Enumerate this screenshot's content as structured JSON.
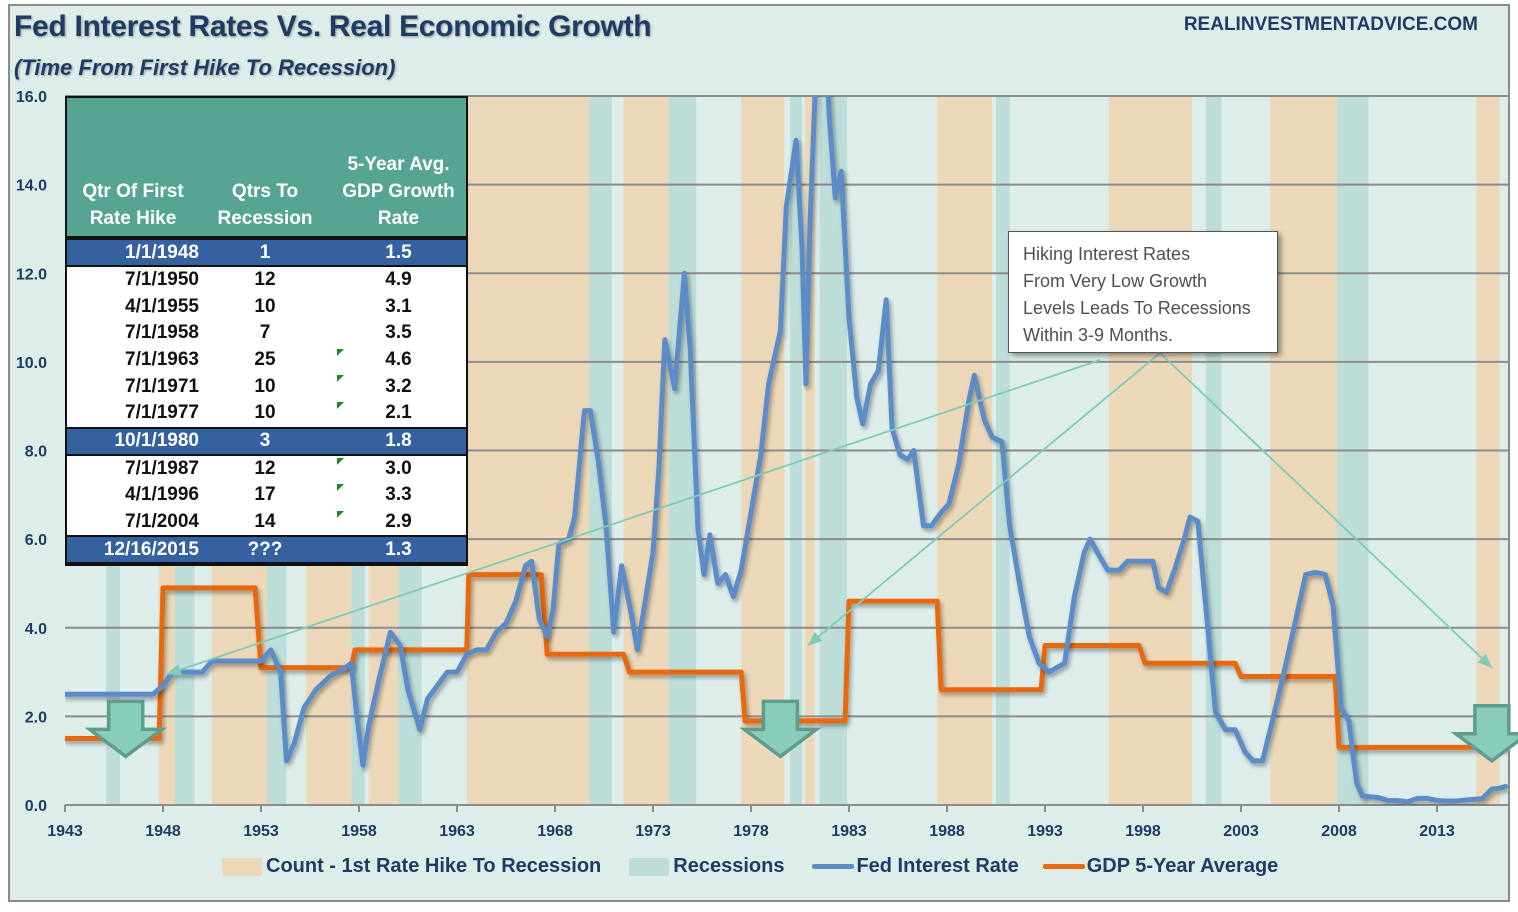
{
  "header": {
    "title": "Fed Interest Rates Vs. Real Economic Growth",
    "subtitle": "(Time From First Hike To Recession)",
    "brand": "REALINVESTMENTADVICE.COM"
  },
  "colors": {
    "background": "#ddedea",
    "count_band": "#ecd8b8",
    "recession_band": "#bdddd8",
    "fed_rate": "#5b8cc8",
    "gdp": "#e8690f",
    "arrow_fill": "#88cdb9",
    "arrow_stroke": "#5f9c8c",
    "pointer": "#7fcbb8",
    "table_header": "#56a593",
    "table_highlight": "#34619f"
  },
  "table": {
    "headers": [
      "Qtr Of First\nRate Hike",
      "Qtrs To\nRecession",
      "5-Year Avg.\nGDP Growth\nRate"
    ],
    "rows": [
      {
        "date": "1/1/1948",
        "qtrs": "1",
        "gdp": "1.5",
        "highlight": true,
        "flag": false
      },
      {
        "date": "7/1/1950",
        "qtrs": "12",
        "gdp": "4.9",
        "highlight": false,
        "flag": false
      },
      {
        "date": "4/1/1955",
        "qtrs": "10",
        "gdp": "3.1",
        "highlight": false,
        "flag": false
      },
      {
        "date": "7/1/1958",
        "qtrs": "7",
        "gdp": "3.5",
        "highlight": false,
        "flag": false
      },
      {
        "date": "7/1/1963",
        "qtrs": "25",
        "gdp": "4.6",
        "highlight": false,
        "flag": true
      },
      {
        "date": "7/1/1971",
        "qtrs": "10",
        "gdp": "3.2",
        "highlight": false,
        "flag": true
      },
      {
        "date": "7/1/1977",
        "qtrs": "10",
        "gdp": "2.1",
        "highlight": false,
        "flag": true
      },
      {
        "date": "10/1/1980",
        "qtrs": "3",
        "gdp": "1.8",
        "highlight": true,
        "flag": false
      },
      {
        "date": "7/1/1987",
        "qtrs": "12",
        "gdp": "3.0",
        "highlight": false,
        "flag": true
      },
      {
        "date": "4/1/1996",
        "qtrs": "17",
        "gdp": "3.3",
        "highlight": false,
        "flag": true
      },
      {
        "date": "7/1/2004",
        "qtrs": "14",
        "gdp": "2.9",
        "highlight": false,
        "flag": true
      },
      {
        "date": "12/16/2015",
        "qtrs": "???",
        "gdp": "1.3",
        "highlight": true,
        "flag": false
      }
    ]
  },
  "callout": {
    "lines": [
      "Hiking Interest Rates",
      "From Very Low Growth",
      "Levels Leads To Recessions",
      "Within 3-9 Months."
    ]
  },
  "chart_data": {
    "type": "line",
    "title": "Fed Interest Rates Vs. Real Economic Growth",
    "subtitle": "(Time From First Hike To Recession)",
    "xlabel": "",
    "ylabel": "",
    "xlim": [
      1943,
      2016.6
    ],
    "ylim": [
      0,
      16
    ],
    "x_ticks": [
      1943,
      1948,
      1953,
      1958,
      1963,
      1968,
      1973,
      1978,
      1983,
      1988,
      1993,
      1998,
      2003,
      2008,
      2013
    ],
    "y_ticks": [
      "0.0",
      "2.0",
      "4.0",
      "6.0",
      "8.0",
      "10.0",
      "12.0",
      "14.0",
      "16.0"
    ],
    "grid": "horizontal",
    "legend_position": "bottom",
    "legend": [
      {
        "label": "Count - 1st Rate Hike To Recession",
        "kind": "band"
      },
      {
        "label": "Recessions",
        "kind": "band"
      },
      {
        "label": "Fed Interest Rate",
        "kind": "line"
      },
      {
        "label": "GDP 5-Year Average",
        "kind": "line"
      }
    ],
    "count_bands": [
      [
        1947.8,
        1948.6
      ],
      [
        1950.5,
        1953.3
      ],
      [
        1955.3,
        1957.6
      ],
      [
        1958.5,
        1960.0
      ],
      [
        1963.5,
        1969.75
      ],
      [
        1971.5,
        1973.8
      ],
      [
        1977.5,
        1979.7
      ],
      [
        1980.75,
        1981.25
      ],
      [
        1987.5,
        1990.3
      ],
      [
        1996.25,
        2000.5
      ],
      [
        2004.5,
        2007.9
      ],
      [
        2015.0,
        2016.2
      ]
    ],
    "recession_bands": [
      [
        1945.1,
        1945.8
      ],
      [
        1948.6,
        1949.6
      ],
      [
        1953.3,
        1954.3
      ],
      [
        1957.6,
        1958.3
      ],
      [
        1960.0,
        1961.2
      ],
      [
        1969.75,
        1970.9
      ],
      [
        1973.8,
        1975.2
      ],
      [
        1980.0,
        1980.6
      ],
      [
        1981.5,
        1982.9
      ],
      [
        1990.5,
        1991.2
      ],
      [
        2001.2,
        2002.0
      ],
      [
        2007.9,
        2009.5
      ]
    ],
    "series": [
      {
        "name": "Fed Interest Rate",
        "points": [
          [
            1943,
            2.5
          ],
          [
            1947.5,
            2.5
          ],
          [
            1948,
            2.7
          ],
          [
            1948.5,
            3.0
          ],
          [
            1950,
            3.0
          ],
          [
            1950.5,
            3.25
          ],
          [
            1953,
            3.25
          ],
          [
            1953.5,
            3.5
          ],
          [
            1954,
            3.0
          ],
          [
            1954.3,
            1.0
          ],
          [
            1954.7,
            1.4
          ],
          [
            1955.2,
            2.2
          ],
          [
            1955.8,
            2.6
          ],
          [
            1956.5,
            2.9
          ],
          [
            1957.3,
            3.1
          ],
          [
            1957.6,
            3.2
          ],
          [
            1957.9,
            2.0
          ],
          [
            1958.2,
            0.9
          ],
          [
            1958.5,
            1.8
          ],
          [
            1959,
            2.8
          ],
          [
            1959.6,
            3.9
          ],
          [
            1960.1,
            3.6
          ],
          [
            1960.5,
            2.6
          ],
          [
            1961.1,
            1.7
          ],
          [
            1961.5,
            2.4
          ],
          [
            1962,
            2.7
          ],
          [
            1962.5,
            3.0
          ],
          [
            1963,
            3.0
          ],
          [
            1963.5,
            3.4
          ],
          [
            1964,
            3.5
          ],
          [
            1964.5,
            3.5
          ],
          [
            1965,
            3.9
          ],
          [
            1965.5,
            4.1
          ],
          [
            1966,
            4.6
          ],
          [
            1966.5,
            5.4
          ],
          [
            1966.8,
            5.5
          ],
          [
            1967.2,
            4.2
          ],
          [
            1967.6,
            3.8
          ],
          [
            1967.9,
            4.4
          ],
          [
            1968.2,
            5.9
          ],
          [
            1968.7,
            6.0
          ],
          [
            1969,
            6.5
          ],
          [
            1969.5,
            8.9
          ],
          [
            1969.8,
            8.9
          ],
          [
            1970.2,
            7.8
          ],
          [
            1970.6,
            6.3
          ],
          [
            1971,
            3.9
          ],
          [
            1971.4,
            5.4
          ],
          [
            1971.9,
            4.3
          ],
          [
            1972.2,
            3.5
          ],
          [
            1972.6,
            4.6
          ],
          [
            1973,
            5.7
          ],
          [
            1973.3,
            7.6
          ],
          [
            1973.6,
            10.5
          ],
          [
            1974.1,
            9.4
          ],
          [
            1974.6,
            12.0
          ],
          [
            1974.9,
            10.3
          ],
          [
            1975.3,
            6.2
          ],
          [
            1975.6,
            5.2
          ],
          [
            1975.9,
            6.1
          ],
          [
            1976.3,
            5.0
          ],
          [
            1976.7,
            5.2
          ],
          [
            1977.1,
            4.7
          ],
          [
            1977.5,
            5.3
          ],
          [
            1978,
            6.6
          ],
          [
            1978.5,
            7.9
          ],
          [
            1978.9,
            9.5
          ],
          [
            1979.2,
            10.1
          ],
          [
            1979.5,
            10.7
          ],
          [
            1979.8,
            13.5
          ],
          [
            1980.3,
            15.0
          ],
          [
            1980.6,
            12.6
          ],
          [
            1980.8,
            9.5
          ],
          [
            1981,
            13.0
          ],
          [
            1981.3,
            16.4
          ],
          [
            1981.6,
            19.0
          ],
          [
            1982,
            15.5
          ],
          [
            1982.3,
            13.7
          ],
          [
            1982.6,
            14.3
          ],
          [
            1983,
            11.0
          ],
          [
            1983.4,
            9.2
          ],
          [
            1983.7,
            8.6
          ],
          [
            1984.1,
            9.5
          ],
          [
            1984.5,
            9.8
          ],
          [
            1984.9,
            11.4
          ],
          [
            1985.2,
            8.5
          ],
          [
            1985.6,
            7.9
          ],
          [
            1986,
            7.8
          ],
          [
            1986.3,
            8.0
          ],
          [
            1986.8,
            6.3
          ],
          [
            1987.2,
            6.3
          ],
          [
            1987.7,
            6.6
          ],
          [
            1988.1,
            6.8
          ],
          [
            1988.6,
            7.7
          ],
          [
            1989.1,
            9.1
          ],
          [
            1989.4,
            9.7
          ],
          [
            1989.9,
            8.7
          ],
          [
            1990.3,
            8.3
          ],
          [
            1990.8,
            8.2
          ],
          [
            1991.2,
            6.3
          ],
          [
            1991.7,
            5.0
          ],
          [
            1992.2,
            3.8
          ],
          [
            1992.7,
            3.2
          ],
          [
            1993.2,
            3.0
          ],
          [
            1993.6,
            3.1
          ],
          [
            1994,
            3.2
          ],
          [
            1994.5,
            4.7
          ],
          [
            1995,
            5.7
          ],
          [
            1995.3,
            6.0
          ],
          [
            1995.8,
            5.6
          ],
          [
            1996.2,
            5.3
          ],
          [
            1996.8,
            5.3
          ],
          [
            1997.2,
            5.5
          ],
          [
            1998,
            5.5
          ],
          [
            1998.5,
            5.5
          ],
          [
            1998.8,
            4.9
          ],
          [
            1999.2,
            4.8
          ],
          [
            1999.6,
            5.3
          ],
          [
            2000.1,
            6.0
          ],
          [
            2000.4,
            6.5
          ],
          [
            2000.8,
            6.4
          ],
          [
            2001.2,
            4.5
          ],
          [
            2001.7,
            2.1
          ],
          [
            2002.2,
            1.7
          ],
          [
            2002.7,
            1.7
          ],
          [
            2003.2,
            1.2
          ],
          [
            2003.6,
            1.0
          ],
          [
            2004.1,
            1.0
          ],
          [
            2004.6,
            1.9
          ],
          [
            2005.2,
            3.0
          ],
          [
            2005.8,
            4.2
          ],
          [
            2006.3,
            5.2
          ],
          [
            2006.8,
            5.25
          ],
          [
            2007.3,
            5.2
          ],
          [
            2007.7,
            4.5
          ],
          [
            2008.1,
            2.2
          ],
          [
            2008.5,
            1.9
          ],
          [
            2008.9,
            0.5
          ],
          [
            2009.2,
            0.2
          ],
          [
            2010,
            0.17
          ],
          [
            2010.5,
            0.1
          ],
          [
            2011,
            0.1
          ],
          [
            2011.5,
            0.07
          ],
          [
            2012,
            0.15
          ],
          [
            2012.5,
            0.15
          ],
          [
            2013,
            0.1
          ],
          [
            2013.5,
            0.09
          ],
          [
            2014,
            0.09
          ],
          [
            2014.6,
            0.12
          ],
          [
            2015.3,
            0.14
          ],
          [
            2015.8,
            0.36
          ],
          [
            2016.2,
            0.38
          ],
          [
            2016.5,
            0.42
          ]
        ]
      },
      {
        "name": "GDP 5-Year Average",
        "points": [
          [
            1943,
            1.5
          ],
          [
            1947.8,
            1.5
          ],
          [
            1948,
            4.9
          ],
          [
            1952.7,
            4.9
          ],
          [
            1953,
            3.1
          ],
          [
            1957.6,
            3.1
          ],
          [
            1957.8,
            3.5
          ],
          [
            1963.5,
            3.5
          ],
          [
            1963.6,
            5.2
          ],
          [
            1967.3,
            5.2
          ],
          [
            1967.6,
            3.4
          ],
          [
            1971.5,
            3.4
          ],
          [
            1971.8,
            3.0
          ],
          [
            1977.5,
            3.0
          ],
          [
            1977.7,
            1.9
          ],
          [
            1982.8,
            1.9
          ],
          [
            1983,
            4.6
          ],
          [
            1987.5,
            4.6
          ],
          [
            1987.7,
            2.6
          ],
          [
            1992.8,
            2.6
          ],
          [
            1993,
            3.6
          ],
          [
            1997.8,
            3.6
          ],
          [
            1998.1,
            3.2
          ],
          [
            2002.7,
            3.2
          ],
          [
            2003,
            2.9
          ],
          [
            2007.8,
            2.9
          ],
          [
            2008,
            1.3
          ],
          [
            2016.6,
            1.3
          ]
        ]
      }
    ],
    "annotations": {
      "down_arrows_at": [
        [
          1946.1,
          2.0
        ],
        [
          1979.5,
          2.0
        ],
        [
          2015.8,
          1.9
        ]
      ],
      "callout_text": "Hiking Interest Rates From Very Low Growth Levels Leads To Recessions Within 3-9 Months.",
      "pointer_targets": [
        [
          1948.2,
          2.95
        ],
        [
          1980.9,
          3.6
        ],
        [
          2015.8,
          3.1
        ]
      ]
    }
  }
}
